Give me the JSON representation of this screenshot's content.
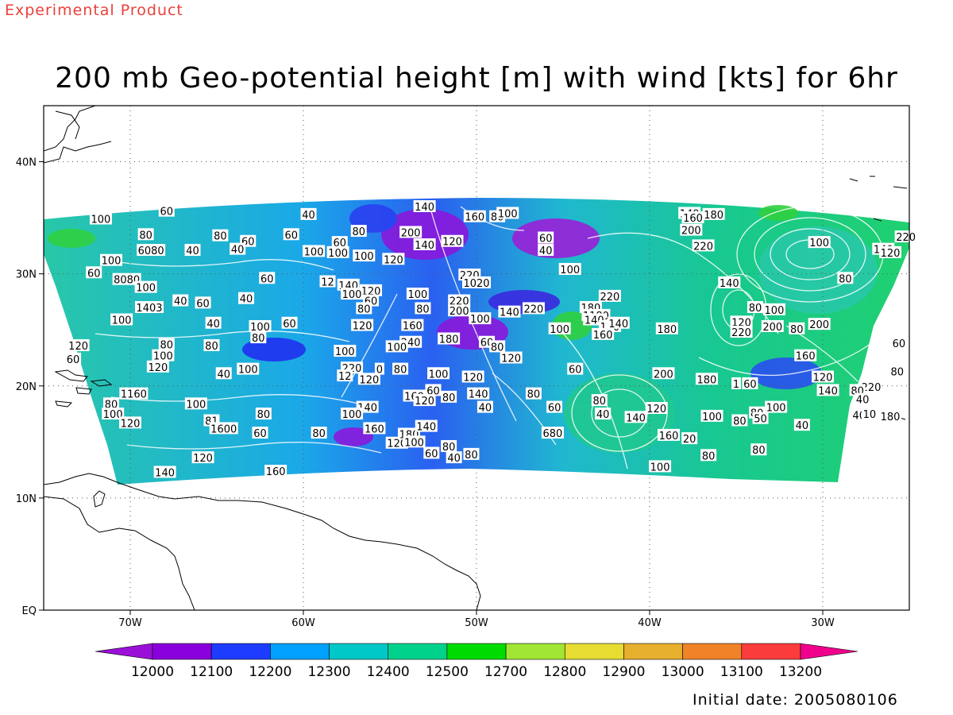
{
  "header": {
    "product_label": "Experimental Product",
    "title": "200 mb Geo-potential height [m] with wind [kts] for 6hr"
  },
  "map": {
    "lon_range": [
      -75,
      -25
    ],
    "lat_range": [
      0,
      45
    ],
    "lon_ticks": [
      {
        "value": -70,
        "label": "70W"
      },
      {
        "value": -60,
        "label": "60W"
      },
      {
        "value": -50,
        "label": "50W"
      },
      {
        "value": -40,
        "label": "40W"
      },
      {
        "value": -30,
        "label": "30W"
      }
    ],
    "lat_ticks": [
      {
        "value": 0,
        "label": "EQ"
      },
      {
        "value": 10,
        "label": "10N"
      },
      {
        "value": 20,
        "label": "20N"
      },
      {
        "value": 30,
        "label": "30N"
      },
      {
        "value": 40,
        "label": "40N"
      }
    ],
    "grid": "dotted",
    "wind_speed_contour_labels": [
      {
        "lon": -71.7,
        "lat": 34.9,
        "text": "100"
      },
      {
        "lon": -67.9,
        "lat": 35.6,
        "text": "60"
      },
      {
        "lon": -69.1,
        "lat": 33.5,
        "text": "80"
      },
      {
        "lon": -68.8,
        "lat": 32.1,
        "text": "6080"
      },
      {
        "lon": -66.4,
        "lat": 32.1,
        "text": "40"
      },
      {
        "lon": -71.1,
        "lat": 31.2,
        "text": "100"
      },
      {
        "lon": -72.1,
        "lat": 30.1,
        "text": "60"
      },
      {
        "lon": -70.2,
        "lat": 29.5,
        "text": "8080"
      },
      {
        "lon": -69.1,
        "lat": 28.8,
        "text": "100"
      },
      {
        "lon": -68.9,
        "lat": 27.0,
        "text": "1403"
      },
      {
        "lon": -65.8,
        "lat": 27.4,
        "text": "60"
      },
      {
        "lon": -67.1,
        "lat": 27.6,
        "text": "40"
      },
      {
        "lon": -70.5,
        "lat": 25.9,
        "text": "100"
      },
      {
        "lon": -65.2,
        "lat": 25.6,
        "text": "40"
      },
      {
        "lon": -73.0,
        "lat": 23.6,
        "text": "120"
      },
      {
        "lon": -67.9,
        "lat": 23.7,
        "text": "80"
      },
      {
        "lon": -68.1,
        "lat": 22.7,
        "text": "100"
      },
      {
        "lon": -65.3,
        "lat": 23.6,
        "text": "80"
      },
      {
        "lon": -73.3,
        "lat": 22.4,
        "text": "60"
      },
      {
        "lon": -68.4,
        "lat": 21.7,
        "text": "120"
      },
      {
        "lon": -64.6,
        "lat": 21.1,
        "text": "40"
      },
      {
        "lon": -63.2,
        "lat": 21.5,
        "text": "100"
      },
      {
        "lon": -69.8,
        "lat": 19.3,
        "text": "1160"
      },
      {
        "lon": -71.1,
        "lat": 18.4,
        "text": "80"
      },
      {
        "lon": -71.0,
        "lat": 17.5,
        "text": "100"
      },
      {
        "lon": -70.0,
        "lat": 16.7,
        "text": "120"
      },
      {
        "lon": -66.2,
        "lat": 18.4,
        "text": "100"
      },
      {
        "lon": -65.3,
        "lat": 16.9,
        "text": "81"
      },
      {
        "lon": -64.6,
        "lat": 16.2,
        "text": "1600"
      },
      {
        "lon": -62.3,
        "lat": 17.5,
        "text": "80"
      },
      {
        "lon": -62.5,
        "lat": 15.8,
        "text": "60"
      },
      {
        "lon": -59.1,
        "lat": 15.8,
        "text": "80"
      },
      {
        "lon": -65.8,
        "lat": 13.6,
        "text": "120"
      },
      {
        "lon": -68.0,
        "lat": 12.3,
        "text": "140"
      },
      {
        "lon": -61.6,
        "lat": 12.4,
        "text": "160"
      },
      {
        "lon": -64.8,
        "lat": 33.4,
        "text": "80"
      },
      {
        "lon": -63.2,
        "lat": 32.9,
        "text": "60"
      },
      {
        "lon": -63.8,
        "lat": 32.2,
        "text": "40"
      },
      {
        "lon": -59.7,
        "lat": 35.3,
        "text": "40"
      },
      {
        "lon": -60.7,
        "lat": 33.5,
        "text": "60"
      },
      {
        "lon": -57.9,
        "lat": 32.8,
        "text": "60"
      },
      {
        "lon": -56.8,
        "lat": 33.8,
        "text": "80"
      },
      {
        "lon": -58.0,
        "lat": 31.9,
        "text": "100"
      },
      {
        "lon": -56.5,
        "lat": 31.6,
        "text": "100"
      },
      {
        "lon": -54.8,
        "lat": 31.3,
        "text": "120"
      },
      {
        "lon": -62.1,
        "lat": 29.6,
        "text": "60"
      },
      {
        "lon": -58.6,
        "lat": 29.3,
        "text": "12"
      },
      {
        "lon": -57.4,
        "lat": 29.0,
        "text": "140"
      },
      {
        "lon": -56.1,
        "lat": 28.5,
        "text": "120"
      },
      {
        "lon": -57.2,
        "lat": 28.2,
        "text": "100"
      },
      {
        "lon": -56.1,
        "lat": 27.6,
        "text": "60"
      },
      {
        "lon": -63.3,
        "lat": 27.8,
        "text": "40"
      },
      {
        "lon": -62.5,
        "lat": 25.3,
        "text": "100"
      },
      {
        "lon": -60.8,
        "lat": 25.6,
        "text": "60"
      },
      {
        "lon": -56.5,
        "lat": 26.9,
        "text": "80"
      },
      {
        "lon": -56.6,
        "lat": 25.4,
        "text": "120"
      },
      {
        "lon": -62.6,
        "lat": 24.3,
        "text": "80"
      },
      {
        "lon": -57.6,
        "lat": 23.1,
        "text": "100"
      },
      {
        "lon": -56.2,
        "lat": 20.6,
        "text": "120"
      },
      {
        "lon": -57.2,
        "lat": 21.6,
        "text": "220"
      },
      {
        "lon": -55.6,
        "lat": 21.5,
        "text": "0"
      },
      {
        "lon": -54.4,
        "lat": 21.5,
        "text": "80"
      },
      {
        "lon": -57.6,
        "lat": 20.9,
        "text": "12"
      },
      {
        "lon": -56.3,
        "lat": 18.1,
        "text": "140"
      },
      {
        "lon": -57.2,
        "lat": 17.5,
        "text": "100"
      },
      {
        "lon": -55.9,
        "lat": 16.2,
        "text": "160"
      },
      {
        "lon": -54.6,
        "lat": 14.9,
        "text": "120"
      },
      {
        "lon": -59.4,
        "lat": 32.0,
        "text": "100"
      },
      {
        "lon": -53.0,
        "lat": 36.0,
        "text": "140"
      },
      {
        "lon": -53.8,
        "lat": 33.7,
        "text": "200"
      },
      {
        "lon": -53.0,
        "lat": 32.6,
        "text": "140"
      },
      {
        "lon": -51.4,
        "lat": 32.9,
        "text": "120"
      },
      {
        "lon": -50.1,
        "lat": 35.1,
        "text": "160"
      },
      {
        "lon": -48.8,
        "lat": 35.1,
        "text": "80"
      },
      {
        "lon": -48.2,
        "lat": 35.4,
        "text": "100"
      },
      {
        "lon": -53.4,
        "lat": 28.2,
        "text": "100"
      },
      {
        "lon": -53.1,
        "lat": 26.9,
        "text": "80"
      },
      {
        "lon": -53.7,
        "lat": 25.4,
        "text": "160"
      },
      {
        "lon": -53.8,
        "lat": 23.9,
        "text": "240"
      },
      {
        "lon": -54.6,
        "lat": 23.5,
        "text": "100"
      },
      {
        "lon": -51.6,
        "lat": 24.2,
        "text": "180"
      },
      {
        "lon": -52.2,
        "lat": 21.1,
        "text": "100"
      },
      {
        "lon": -52.5,
        "lat": 19.6,
        "text": "60"
      },
      {
        "lon": -53.6,
        "lat": 19.1,
        "text": "160"
      },
      {
        "lon": -53.0,
        "lat": 18.7,
        "text": "120"
      },
      {
        "lon": -51.6,
        "lat": 19.0,
        "text": "80"
      },
      {
        "lon": -53.9,
        "lat": 15.7,
        "text": "180"
      },
      {
        "lon": -53.6,
        "lat": 15.0,
        "text": "100"
      },
      {
        "lon": -52.9,
        "lat": 16.4,
        "text": "140"
      },
      {
        "lon": -51.6,
        "lat": 14.6,
        "text": "80"
      },
      {
        "lon": -52.6,
        "lat": 14.0,
        "text": "60"
      },
      {
        "lon": -51.3,
        "lat": 13.6,
        "text": "40"
      },
      {
        "lon": -50.3,
        "lat": 13.9,
        "text": "80"
      },
      {
        "lon": -50.4,
        "lat": 29.9,
        "text": "220"
      },
      {
        "lon": -50.0,
        "lat": 29.2,
        "text": "1020"
      },
      {
        "lon": -51.0,
        "lat": 27.6,
        "text": "220"
      },
      {
        "lon": -51.0,
        "lat": 26.7,
        "text": "200"
      },
      {
        "lon": -49.8,
        "lat": 26.0,
        "text": "100"
      },
      {
        "lon": -48.1,
        "lat": 26.6,
        "text": "140"
      },
      {
        "lon": -46.7,
        "lat": 26.9,
        "text": "220"
      },
      {
        "lon": -49.4,
        "lat": 23.9,
        "text": "60"
      },
      {
        "lon": -48.8,
        "lat": 23.5,
        "text": "80"
      },
      {
        "lon": -48.0,
        "lat": 22.5,
        "text": "120"
      },
      {
        "lon": -50.2,
        "lat": 20.8,
        "text": "120"
      },
      {
        "lon": -49.9,
        "lat": 19.3,
        "text": "140"
      },
      {
        "lon": -49.5,
        "lat": 18.1,
        "text": "40"
      },
      {
        "lon": -46.7,
        "lat": 19.3,
        "text": "80"
      },
      {
        "lon": -45.5,
        "lat": 18.1,
        "text": "60"
      },
      {
        "lon": -45.6,
        "lat": 15.8,
        "text": "680"
      },
      {
        "lon": -46.0,
        "lat": 33.2,
        "text": "60"
      },
      {
        "lon": -46.0,
        "lat": 32.1,
        "text": "40"
      },
      {
        "lon": -44.6,
        "lat": 30.4,
        "text": "100"
      },
      {
        "lon": -45.2,
        "lat": 25.1,
        "text": "100"
      },
      {
        "lon": -44.3,
        "lat": 21.5,
        "text": "60"
      },
      {
        "lon": -42.3,
        "lat": 28.0,
        "text": "220"
      },
      {
        "lon": -43.4,
        "lat": 27.0,
        "text": "180"
      },
      {
        "lon": -43.1,
        "lat": 26.3,
        "text": "1180"
      },
      {
        "lon": -43.2,
        "lat": 25.9,
        "text": "140"
      },
      {
        "lon": -42.3,
        "lat": 25.3,
        "text": "120"
      },
      {
        "lon": -41.8,
        "lat": 25.6,
        "text": "140"
      },
      {
        "lon": -42.7,
        "lat": 24.6,
        "text": "160"
      },
      {
        "lon": -42.9,
        "lat": 18.7,
        "text": "80"
      },
      {
        "lon": -42.7,
        "lat": 17.5,
        "text": "40"
      },
      {
        "lon": -37.7,
        "lat": 35.4,
        "text": "140"
      },
      {
        "lon": -37.5,
        "lat": 35.0,
        "text": "160"
      },
      {
        "lon": -36.3,
        "lat": 35.3,
        "text": "180"
      },
      {
        "lon": -37.6,
        "lat": 33.9,
        "text": "200"
      },
      {
        "lon": -36.9,
        "lat": 32.5,
        "text": "220"
      },
      {
        "lon": -35.4,
        "lat": 29.2,
        "text": "140"
      },
      {
        "lon": -39.0,
        "lat": 25.1,
        "text": "180"
      },
      {
        "lon": -39.2,
        "lat": 21.1,
        "text": "200"
      },
      {
        "lon": -36.7,
        "lat": 20.6,
        "text": "180"
      },
      {
        "lon": -34.2,
        "lat": 20.2,
        "text": "60"
      },
      {
        "lon": -35.0,
        "lat": 20.2,
        "text": "1"
      },
      {
        "lon": -39.6,
        "lat": 18.0,
        "text": "120"
      },
      {
        "lon": -40.8,
        "lat": 17.2,
        "text": "140"
      },
      {
        "lon": -36.4,
        "lat": 17.3,
        "text": "100"
      },
      {
        "lon": -34.8,
        "lat": 16.9,
        "text": "80"
      },
      {
        "lon": -33.8,
        "lat": 17.6,
        "text": "80"
      },
      {
        "lon": -33.6,
        "lat": 17.1,
        "text": "50"
      },
      {
        "lon": -38.9,
        "lat": 15.6,
        "text": "160"
      },
      {
        "lon": -37.7,
        "lat": 15.3,
        "text": "20"
      },
      {
        "lon": -36.6,
        "lat": 13.8,
        "text": "80"
      },
      {
        "lon": -33.7,
        "lat": 14.3,
        "text": "80"
      },
      {
        "lon": -39.4,
        "lat": 12.8,
        "text": "100"
      },
      {
        "lon": -33.9,
        "lat": 27.0,
        "text": "80"
      },
      {
        "lon": -32.8,
        "lat": 26.8,
        "text": "100"
      },
      {
        "lon": -34.7,
        "lat": 25.7,
        "text": "120"
      },
      {
        "lon": -34.7,
        "lat": 24.8,
        "text": "220"
      },
      {
        "lon": -32.9,
        "lat": 25.3,
        "text": "200"
      },
      {
        "lon": -31.5,
        "lat": 25.1,
        "text": "80"
      },
      {
        "lon": -30.2,
        "lat": 25.5,
        "text": "200"
      },
      {
        "lon": -31.0,
        "lat": 22.7,
        "text": "160"
      },
      {
        "lon": -30.0,
        "lat": 20.8,
        "text": "120"
      },
      {
        "lon": -29.7,
        "lat": 19.6,
        "text": "140"
      },
      {
        "lon": -27.2,
        "lat": 19.9,
        "text": "220"
      },
      {
        "lon": -28.0,
        "lat": 19.6,
        "text": "80"
      },
      {
        "lon": -27.7,
        "lat": 18.8,
        "text": "40"
      },
      {
        "lon": -32.7,
        "lat": 18.1,
        "text": "100"
      },
      {
        "lon": -31.2,
        "lat": 16.5,
        "text": "40"
      },
      {
        "lon": -27.9,
        "lat": 17.4,
        "text": "40"
      },
      {
        "lon": -27.3,
        "lat": 17.5,
        "text": "10"
      },
      {
        "lon": -26.1,
        "lat": 17.3,
        "text": "180"
      },
      {
        "lon": -25.7,
        "lat": 21.3,
        "text": "80"
      },
      {
        "lon": -25.6,
        "lat": 23.8,
        "text": "60"
      },
      {
        "lon": -30.2,
        "lat": 32.8,
        "text": "100"
      },
      {
        "lon": -26.5,
        "lat": 32.2,
        "text": "140"
      },
      {
        "lon": -25.2,
        "lat": 33.3,
        "text": "220"
      },
      {
        "lon": -28.7,
        "lat": 29.6,
        "text": "80"
      },
      {
        "lon": -26.1,
        "lat": 31.9,
        "text": "120"
      }
    ]
  },
  "colorbar": {
    "colors": [
      "#9b10d8",
      "#8a00dc",
      "#1e3cff",
      "#00a0ff",
      "#00c8c8",
      "#00d28c",
      "#00dc00",
      "#a0e632",
      "#e6dc32",
      "#e6af2d",
      "#f08228",
      "#fa3c3c",
      "#f0008c"
    ],
    "labels": [
      "12000",
      "12100",
      "12200",
      "12300",
      "12400",
      "12500",
      "12700",
      "12800",
      "12900",
      "13000",
      "13100",
      "13200"
    ]
  },
  "footer": {
    "initial_date_label": "Initial date: 2005080106"
  }
}
